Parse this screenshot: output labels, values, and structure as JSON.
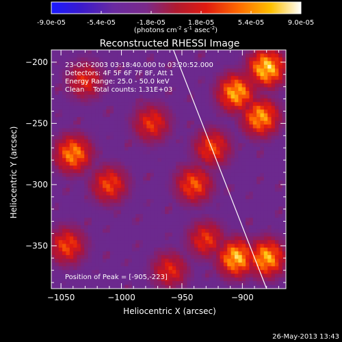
{
  "colorbar": {
    "ticks": [
      "-9.0e-05",
      "-5.4e-05",
      "-1.8e-05",
      "1.8e-05",
      "5.4e-05",
      "9.0e-05"
    ],
    "unit_main": "(photons cm",
    "unit_sup1": "-2",
    "unit_mid": " s",
    "unit_sup2": "-1",
    "unit_end": " asec",
    "unit_sup3": "-2",
    "unit_close": ")",
    "range": [
      -9e-05,
      9e-05
    ]
  },
  "chart_data": {
    "type": "heatmap",
    "title": "Reconstructed RHESSI Image",
    "xlabel": "Heliocentric X (arcsec)",
    "ylabel": "Heliocentric Y (arcsec)",
    "xlim": [
      -1058,
      -864
    ],
    "ylim": [
      -385,
      -190
    ],
    "x_ticks": [
      -1050,
      -1000,
      -950,
      -900
    ],
    "y_ticks": [
      -200,
      -250,
      -300,
      -350
    ],
    "x_tick_labels": [
      "−1050",
      "−1000",
      "−950",
      "−900"
    ],
    "y_tick_labels": [
      "−200",
      "−250",
      "−300",
      "−350"
    ],
    "peak": [
      -905,
      -223
    ],
    "limb_line": [
      [
        -957,
        -190
      ],
      [
        -880,
        -385
      ]
    ],
    "annotations": {
      "time": "23-Oct-2003 03:18:40.000 to 03:20:52.000",
      "detectors": "Detectors: 4F 5F 6F 7F 8F, Att 1",
      "energy": "Energy Range: 25.0 - 50.0 keV",
      "method": "Clean    Total counts: 1.31E+03",
      "peak_text": "Position of Peak = [-905,-223]"
    },
    "colormap": "rainbow blue-purple-red-yellow-white",
    "bright_regions": [
      {
        "x": -880,
        "y": -205,
        "level": 1.0
      },
      {
        "x": -885,
        "y": -245,
        "level": 0.85
      },
      {
        "x": -905,
        "y": -225,
        "level": 0.9
      },
      {
        "x": -1040,
        "y": -275,
        "level": 0.8
      },
      {
        "x": -1010,
        "y": -300,
        "level": 0.6
      },
      {
        "x": -940,
        "y": -300,
        "level": 0.65
      },
      {
        "x": -930,
        "y": -345,
        "level": 0.55
      },
      {
        "x": -905,
        "y": -360,
        "level": 0.95
      },
      {
        "x": -880,
        "y": -360,
        "level": 0.9
      },
      {
        "x": -1045,
        "y": -350,
        "level": 0.6
      },
      {
        "x": -975,
        "y": -250,
        "level": 0.55
      },
      {
        "x": -1030,
        "y": -215,
        "level": 0.5
      },
      {
        "x": -925,
        "y": -270,
        "level": 0.6
      },
      {
        "x": -960,
        "y": -370,
        "level": 0.5
      }
    ]
  },
  "footer": {
    "date": "26-May-2013 13:43"
  }
}
